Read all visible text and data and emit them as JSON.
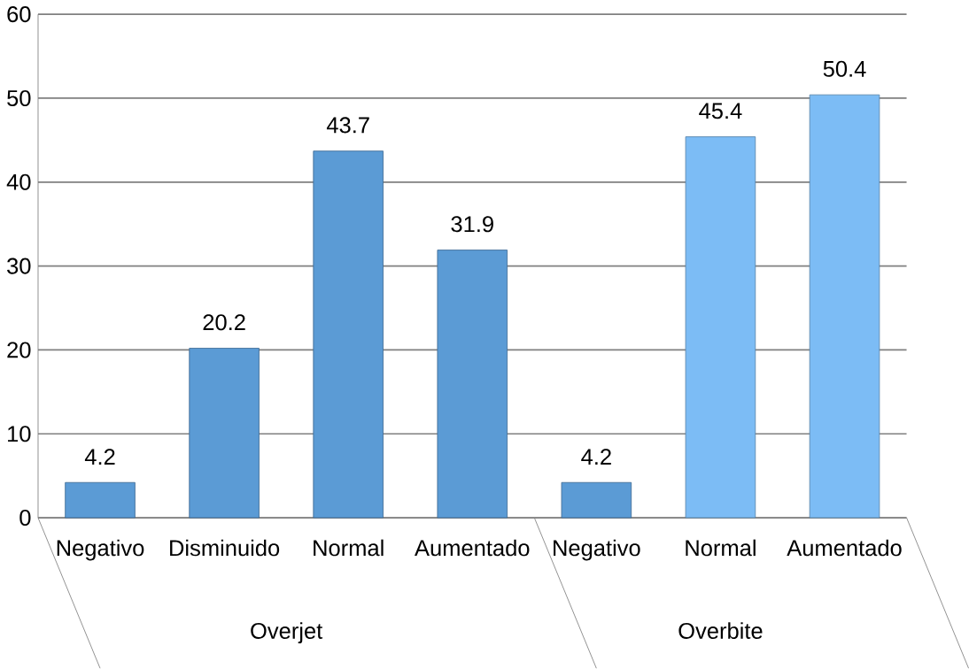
{
  "chart_data": {
    "type": "bar",
    "categories": [
      "Negativo",
      "Disminuido",
      "Normal",
      "Aumentado",
      "Negativo",
      "Normal",
      "Aumentado"
    ],
    "values": [
      4.2,
      20.2,
      43.7,
      31.9,
      4.2,
      45.4,
      50.4
    ],
    "colors": [
      "#5b9bd5",
      "#5b9bd5",
      "#5b9bd5",
      "#5b9bd5",
      "#5b9bd5",
      "#7cbcf5",
      "#7cbcf5"
    ],
    "ylim": [
      0,
      60
    ],
    "yticks": [
      0,
      10,
      20,
      30,
      40,
      50,
      60
    ],
    "grid": "y",
    "data_labels": true,
    "annotations": [
      "Overjet",
      "Overbite"
    ]
  }
}
